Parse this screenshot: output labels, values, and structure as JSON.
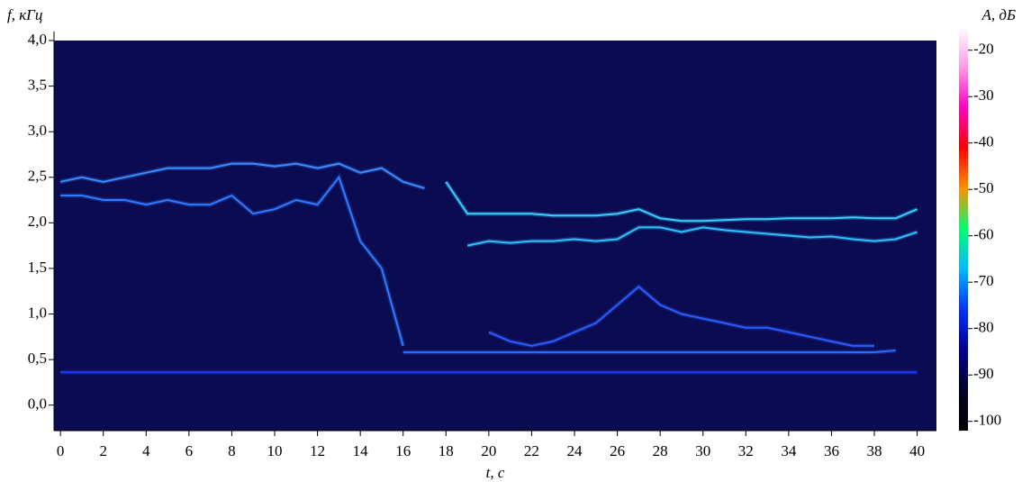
{
  "chart_data": {
    "type": "spectrogram",
    "y_label": "f, кГц",
    "x_label": "t, с",
    "colorbar_label": "A, дБ",
    "xlim": [
      -0.3,
      40.9
    ],
    "xticks": [
      0,
      2,
      4,
      6,
      8,
      10,
      12,
      14,
      16,
      18,
      20,
      22,
      24,
      26,
      28,
      30,
      32,
      34,
      36,
      38,
      40
    ],
    "ylim": [
      -0.28,
      4.0
    ],
    "yticks": [
      {
        "value": 0,
        "label": "0,0"
      },
      {
        "value": 0.5,
        "label": "0,5"
      },
      {
        "value": 1,
        "label": "1,0"
      },
      {
        "value": 1.5,
        "label": "1,5"
      },
      {
        "value": 2,
        "label": "2,0"
      },
      {
        "value": 2.5,
        "label": "2,5"
      },
      {
        "value": 3,
        "label": "3,0"
      },
      {
        "value": 3.5,
        "label": "3,5"
      },
      {
        "value": 4,
        "label": "4,0"
      }
    ],
    "clim": [
      -102,
      -15
    ],
    "cticks": [
      -100,
      -90,
      -80,
      -70,
      -60,
      -50,
      -40,
      -30,
      -20
    ],
    "colormap": [
      "#000000",
      "#00002a",
      "#000090",
      "#0030ff",
      "#00b8ff",
      "#00ff70",
      "#ff9000",
      "#ff0000",
      "#ff00c0",
      "#ff9ae6",
      "#ffffff"
    ],
    "background": "#0b0b52",
    "x": [
      0,
      1,
      2,
      3,
      4,
      5,
      6,
      7,
      8,
      9,
      10,
      11,
      12,
      13,
      14,
      15,
      16,
      17,
      18,
      19,
      20,
      21,
      22,
      23,
      24,
      25,
      26,
      27,
      28,
      29,
      30,
      31,
      32,
      33,
      34,
      35,
      36,
      37,
      38,
      39,
      40
    ],
    "series": [
      {
        "color": "#1a3cff",
        "values": [
          0.36,
          0.36,
          0.36,
          0.36,
          0.36,
          0.36,
          0.36,
          0.36,
          0.36,
          0.36,
          0.36,
          0.36,
          0.36,
          0.36,
          0.36,
          0.36,
          0.36,
          0.36,
          0.36,
          0.36,
          0.36,
          0.36,
          0.36,
          0.36,
          0.36,
          0.36,
          0.36,
          0.36,
          0.36,
          0.36,
          0.36,
          0.36,
          0.36,
          0.36,
          0.36,
          0.36,
          0.36,
          0.36,
          0.36,
          0.36,
          0.36
        ]
      },
      {
        "color": "#3a8cff",
        "values": [
          2.45,
          2.5,
          2.45,
          2.5,
          2.55,
          2.6,
          2.6,
          2.6,
          2.65,
          2.65,
          2.62,
          2.65,
          2.6,
          2.65,
          2.55,
          2.6,
          2.45,
          2.38,
          null,
          null,
          null,
          null,
          null,
          null,
          null,
          null,
          null,
          null,
          null,
          null,
          null,
          null,
          null,
          null,
          null,
          null,
          null,
          null,
          null,
          null,
          null
        ]
      },
      {
        "color": "#2f7aff",
        "values": [
          2.3,
          2.3,
          2.25,
          2.25,
          2.2,
          2.25,
          2.2,
          2.2,
          2.3,
          2.1,
          2.15,
          2.25,
          2.2,
          2.5,
          1.8,
          1.5,
          0.65,
          null,
          null,
          null,
          null,
          null,
          null,
          null,
          null,
          null,
          null,
          null,
          null,
          null,
          null,
          null,
          null,
          null,
          null,
          null,
          null,
          null,
          null,
          null,
          null
        ]
      },
      {
        "color": "#38d0ff",
        "values": [
          null,
          null,
          null,
          null,
          null,
          null,
          null,
          null,
          null,
          null,
          null,
          null,
          null,
          null,
          null,
          null,
          null,
          null,
          2.45,
          2.1,
          2.1,
          2.1,
          2.1,
          2.08,
          2.08,
          2.08,
          2.1,
          2.15,
          2.05,
          2.02,
          2.02,
          2.03,
          2.04,
          2.04,
          2.05,
          2.05,
          2.05,
          2.06,
          2.05,
          2.05,
          2.15
        ]
      },
      {
        "color": "#30c0ff",
        "values": [
          null,
          null,
          null,
          null,
          null,
          null,
          null,
          null,
          null,
          null,
          null,
          null,
          null,
          null,
          null,
          null,
          null,
          null,
          null,
          1.75,
          1.8,
          1.78,
          1.8,
          1.8,
          1.82,
          1.8,
          1.82,
          1.95,
          1.95,
          1.9,
          1.95,
          1.92,
          1.9,
          1.88,
          1.86,
          1.84,
          1.85,
          1.82,
          1.8,
          1.82,
          1.9
        ]
      },
      {
        "color": "#2a6cff",
        "values": [
          null,
          null,
          null,
          null,
          null,
          null,
          null,
          null,
          null,
          null,
          null,
          null,
          null,
          null,
          null,
          null,
          0.58,
          0.58,
          0.58,
          0.58,
          0.58,
          0.58,
          0.58,
          0.58,
          0.58,
          0.58,
          0.58,
          0.58,
          0.58,
          0.58,
          0.58,
          0.58,
          0.58,
          0.58,
          0.58,
          0.58,
          0.58,
          0.58,
          0.58,
          0.6,
          null
        ]
      },
      {
        "color": "#2a5cff",
        "values": [
          null,
          null,
          null,
          null,
          null,
          null,
          null,
          null,
          null,
          null,
          null,
          null,
          null,
          null,
          null,
          null,
          null,
          null,
          null,
          null,
          0.8,
          0.7,
          0.65,
          0.7,
          0.8,
          0.9,
          1.1,
          1.3,
          1.1,
          1.0,
          0.95,
          0.9,
          0.85,
          0.85,
          0.8,
          0.75,
          0.7,
          0.65,
          0.65,
          null,
          null
        ]
      }
    ]
  }
}
